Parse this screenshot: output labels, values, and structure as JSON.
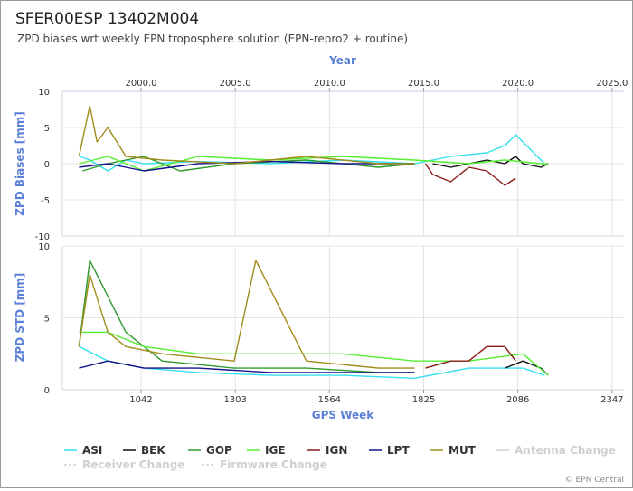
{
  "header": {
    "title": "SFER00ESP 13402M004",
    "subtitle": "ZPD biases wrt weekly EPN troposphere solution (EPN-repro2 + routine)"
  },
  "chart_data": [
    {
      "type": "line",
      "title": "ZPD Biases",
      "ylabel": "ZPD Biases [mm]",
      "ylim": [
        -10,
        10
      ],
      "yticks": [
        "10",
        "5",
        "0",
        "-5",
        "-10"
      ],
      "xlabel_top": "Year",
      "xticks_top": [
        "2000.0",
        "2005.0",
        "2010.0",
        "2015.0",
        "2020.0",
        "2025.0"
      ],
      "grid": true,
      "series": [
        {
          "name": "ASI",
          "color": "#33e0f0",
          "x": [
            872,
            900,
            950,
            1000,
            1050,
            1200,
            1400,
            1600,
            1800,
            1900,
            2000,
            2050,
            2080,
            2100,
            2160
          ],
          "y": [
            1,
            0.5,
            -1,
            0.5,
            0,
            0.3,
            0,
            0.5,
            0,
            1,
            1.5,
            2.5,
            4,
            3,
            0
          ]
        },
        {
          "name": "BEK",
          "color": "#111111",
          "x": [
            1850,
            1900,
            1950,
            2000,
            2050,
            2080,
            2100,
            2150,
            2170
          ],
          "y": [
            0,
            -0.5,
            0,
            0.5,
            0,
            1,
            0,
            -0.5,
            0
          ]
        },
        {
          "name": "GOP",
          "color": "#2f9a2f",
          "x": [
            880,
            950,
            1050,
            1150,
            1300,
            1500,
            1700,
            1800
          ],
          "y": [
            -1,
            0,
            1,
            -1,
            0,
            0.5,
            -0.5,
            0
          ]
        },
        {
          "name": "IGE",
          "color": "#55ee33",
          "x": [
            870,
            950,
            1050,
            1200,
            1400,
            1600,
            1800,
            1950,
            2050,
            2150,
            2170
          ],
          "y": [
            0,
            1,
            -1,
            1,
            0.5,
            1,
            0.5,
            0,
            0.5,
            0,
            0
          ]
        },
        {
          "name": "IGN",
          "color": "#8b1a1a",
          "x": [
            1830,
            1850,
            1900,
            1950,
            2000,
            2050,
            2080
          ],
          "y": [
            0,
            -1.5,
            -2.5,
            -0.5,
            -1,
            -3,
            -2
          ]
        },
        {
          "name": "LPT",
          "color": "#14148a",
          "x": [
            870,
            950,
            1050,
            1200,
            1400,
            1600,
            1800
          ],
          "y": [
            -0.5,
            0,
            -1,
            0,
            0.3,
            0,
            0
          ]
        },
        {
          "name": "MUT",
          "color": "#a08c1a",
          "x": [
            870,
            900,
            920,
            950,
            1000,
            1100,
            1300,
            1500,
            1700,
            1800
          ],
          "y": [
            1,
            8,
            3,
            5,
            1,
            0.5,
            0,
            1,
            0,
            0
          ]
        }
      ]
    },
    {
      "type": "line",
      "title": "ZPD STD",
      "ylabel": "ZPD STD [mm]",
      "ylim": [
        0,
        10
      ],
      "yticks": [
        "10",
        "5",
        "0"
      ],
      "xlabel": "GPS Week",
      "xticks": [
        "1042",
        "1303",
        "1564",
        "1825",
        "2086",
        "2347"
      ],
      "grid": true,
      "series": [
        {
          "name": "ASI",
          "color": "#33e0f0",
          "x": [
            870,
            950,
            1050,
            1200,
            1400,
            1600,
            1800,
            1950,
            2100,
            2160
          ],
          "y": [
            3,
            2,
            1.5,
            1.2,
            1,
            1,
            0.8,
            1.5,
            1.5,
            1
          ]
        },
        {
          "name": "BEK",
          "color": "#111111",
          "x": [
            2050,
            2100,
            2150,
            2170
          ],
          "y": [
            1.5,
            2,
            1.5,
            1
          ]
        },
        {
          "name": "GOP",
          "color": "#2f9a2f",
          "x": [
            870,
            900,
            1000,
            1100,
            1300,
            1500,
            1700,
            1800
          ],
          "y": [
            3,
            9,
            4,
            2,
            1.5,
            1.5,
            1.2,
            1.2
          ]
        },
        {
          "name": "IGE",
          "color": "#55ee33",
          "x": [
            870,
            950,
            1050,
            1200,
            1400,
            1600,
            1800,
            1950,
            2100,
            2170
          ],
          "y": [
            4,
            4,
            3,
            2.5,
            2.5,
            2.5,
            2,
            2,
            2.5,
            1
          ]
        },
        {
          "name": "IGN",
          "color": "#8b1a1a",
          "x": [
            1830,
            1900,
            1950,
            2000,
            2050,
            2080
          ],
          "y": [
            1.5,
            2,
            2,
            3,
            3,
            2
          ]
        },
        {
          "name": "LPT",
          "color": "#14148a",
          "x": [
            870,
            950,
            1050,
            1200,
            1400,
            1600,
            1800
          ],
          "y": [
            1.5,
            2,
            1.5,
            1.5,
            1.2,
            1.2,
            1.2
          ]
        },
        {
          "name": "MUT",
          "color": "#a08c1a",
          "x": [
            870,
            900,
            950,
            1000,
            1100,
            1300,
            1360,
            1500,
            1700,
            1800
          ],
          "y": [
            3,
            8,
            4,
            3,
            2.5,
            2,
            9,
            2,
            1.5,
            1.5
          ]
        }
      ]
    }
  ],
  "legend": {
    "items": [
      {
        "label": "ASI",
        "color": "#33e0f0",
        "dashed": false,
        "dim": false
      },
      {
        "label": "BEK",
        "color": "#111111",
        "dashed": false,
        "dim": false
      },
      {
        "label": "GOP",
        "color": "#2f9a2f",
        "dashed": false,
        "dim": false
      },
      {
        "label": "IGE",
        "color": "#55ee33",
        "dashed": false,
        "dim": false
      },
      {
        "label": "IGN",
        "color": "#8b1a1a",
        "dashed": false,
        "dim": false
      },
      {
        "label": "LPT",
        "color": "#14148a",
        "dashed": false,
        "dim": false
      },
      {
        "label": "MUT",
        "color": "#a08c1a",
        "dashed": false,
        "dim": false
      },
      {
        "label": "Antenna Change",
        "color": "#cfcfcf",
        "dashed": false,
        "dim": true
      },
      {
        "label": "Receiver Change",
        "color": "#cfcfcf",
        "dashed": true,
        "dim": true
      },
      {
        "label": "Firmware Change",
        "color": "#cfcfcf",
        "dashed": true,
        "dim": true
      }
    ]
  },
  "footer": {
    "credit": "© EPN Central"
  }
}
